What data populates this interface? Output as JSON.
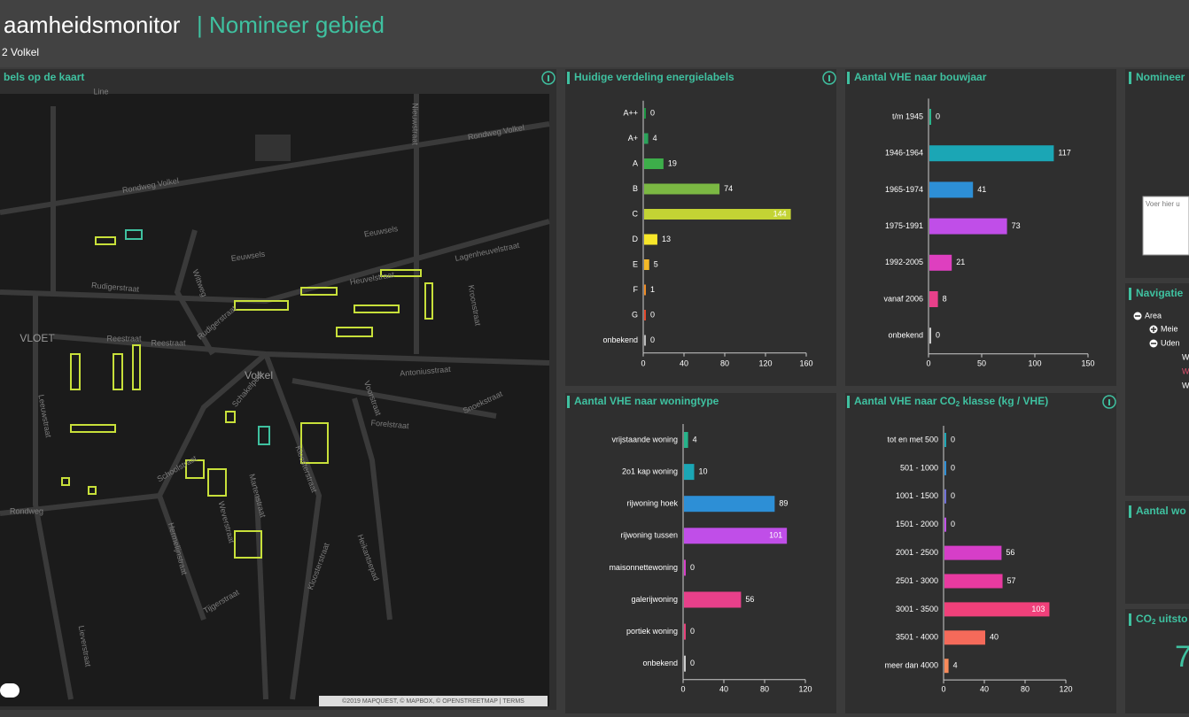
{
  "header": {
    "title": "aamheidsmonitor",
    "separator": "|",
    "page": "Nomineer gebied",
    "area": "2 Volkel"
  },
  "map": {
    "title": "bels op de kaart",
    "labels": [
      "Line",
      "Rondweg Volkel",
      "Rondweg Volkel",
      "Eeuwsels",
      "Eeuwsels",
      "Lagenheuvelstraat",
      "Rudigerstraat",
      "Heuvelstraat",
      "Wittweg",
      "Reestraat",
      "Reestraat",
      "VLOET",
      "Volkel",
      "Antoniusstraat",
      "Nieuwstraat",
      "Rudigerstraat",
      "Kroonstraat",
      "Snoekstraat",
      "Forelstraat",
      "Voorstraat",
      "Kloosterstraat",
      "Schakelpein",
      "Schoolstraat",
      "Hermelijnstraat",
      "Weverstraat",
      "Martenstraat",
      "Tijgerstraat",
      "Leeuwstraat",
      "Rondweg",
      "Kloosterstraat",
      "Heikantsepad",
      "Lieverstraat"
    ],
    "attribution": "©2019 MAPQUEST, © MAPBOX, © OPENSTREETMAP | TERMS"
  },
  "chart_data": [
    {
      "type": "bar",
      "title": "Huidige verdeling energielabels",
      "categories": [
        "A++",
        "A+",
        "A",
        "B",
        "C",
        "D",
        "E",
        "F",
        "G",
        "onbekend"
      ],
      "values": [
        0,
        4,
        19,
        74,
        144,
        13,
        5,
        1,
        0,
        0
      ],
      "colors": [
        "#1a9641",
        "#2aa35a",
        "#3dae4a",
        "#7bb843",
        "#c3d334",
        "#f7e62a",
        "#f4b827",
        "#f08c25",
        "#e4472b",
        "#bbbbbb"
      ],
      "xlim": [
        0,
        160
      ],
      "xticks": [
        0,
        40,
        80,
        120,
        160
      ]
    },
    {
      "type": "bar",
      "title": "Aantal VHE naar bouwjaar",
      "categories": [
        "t/m 1945",
        "1946-1964",
        "1965-1974",
        "1975-1991",
        "1992-2005",
        "vanaf 2006",
        "onbekend"
      ],
      "values": [
        0,
        117,
        41,
        73,
        21,
        8,
        0
      ],
      "colors": [
        "#2bb58c",
        "#1ba6b5",
        "#2d8fd6",
        "#c04ee8",
        "#de3fbf",
        "#e8408a",
        "#cccccc"
      ],
      "xlim": [
        0,
        150
      ],
      "xticks": [
        0,
        50,
        100,
        150
      ]
    },
    {
      "type": "bar",
      "title": "Aantal VHE naar woningtype",
      "categories": [
        "vrijstaande woning",
        "2o1 kap woning",
        "rijwoning hoek",
        "rijwoning tussen",
        "maisonnettewoning",
        "galerijwoning",
        "portiek woning",
        "onbekend"
      ],
      "values": [
        4,
        10,
        89,
        101,
        0,
        56,
        0,
        0
      ],
      "colors": [
        "#26b38a",
        "#1ba6b5",
        "#2d8fd6",
        "#c04ee8",
        "#d63ec8",
        "#e8408a",
        "#e8407a",
        "#cccccc"
      ],
      "xlim": [
        0,
        120
      ],
      "xticks": [
        0,
        40,
        80,
        120
      ]
    },
    {
      "type": "bar",
      "title": [
        "Aantal VHE naar CO",
        "2",
        " klasse (kg / VHE)"
      ],
      "categories": [
        "tot en met 500",
        "501 - 1000",
        "1001 - 1500",
        "1501 - 2000",
        "2001 - 2500",
        "2501 - 3000",
        "3001 - 3500",
        "3501 - 4000",
        "meer dan 4000"
      ],
      "values": [
        0,
        0,
        0,
        0,
        56,
        57,
        103,
        40,
        4
      ],
      "colors": [
        "#1ba6b5",
        "#2d8fd6",
        "#6f6fd8",
        "#c04ee8",
        "#d63ec8",
        "#e83aa0",
        "#f0407a",
        "#f56a5a",
        "#f88a5a"
      ],
      "xlim": [
        0,
        120
      ],
      "xticks": [
        0,
        40,
        80,
        120
      ]
    }
  ],
  "side": {
    "nominate": {
      "title": "Nomineer",
      "placeholder": "Voer hier u"
    },
    "navigation": {
      "title": "Navigatie",
      "tree": [
        "Area",
        "Meie",
        "Uden",
        "W",
        "W",
        "W"
      ]
    },
    "count": {
      "title": "Aantal wo"
    },
    "co2": {
      "title": [
        "CO",
        "2",
        " uitsto"
      ],
      "value": "7"
    }
  }
}
